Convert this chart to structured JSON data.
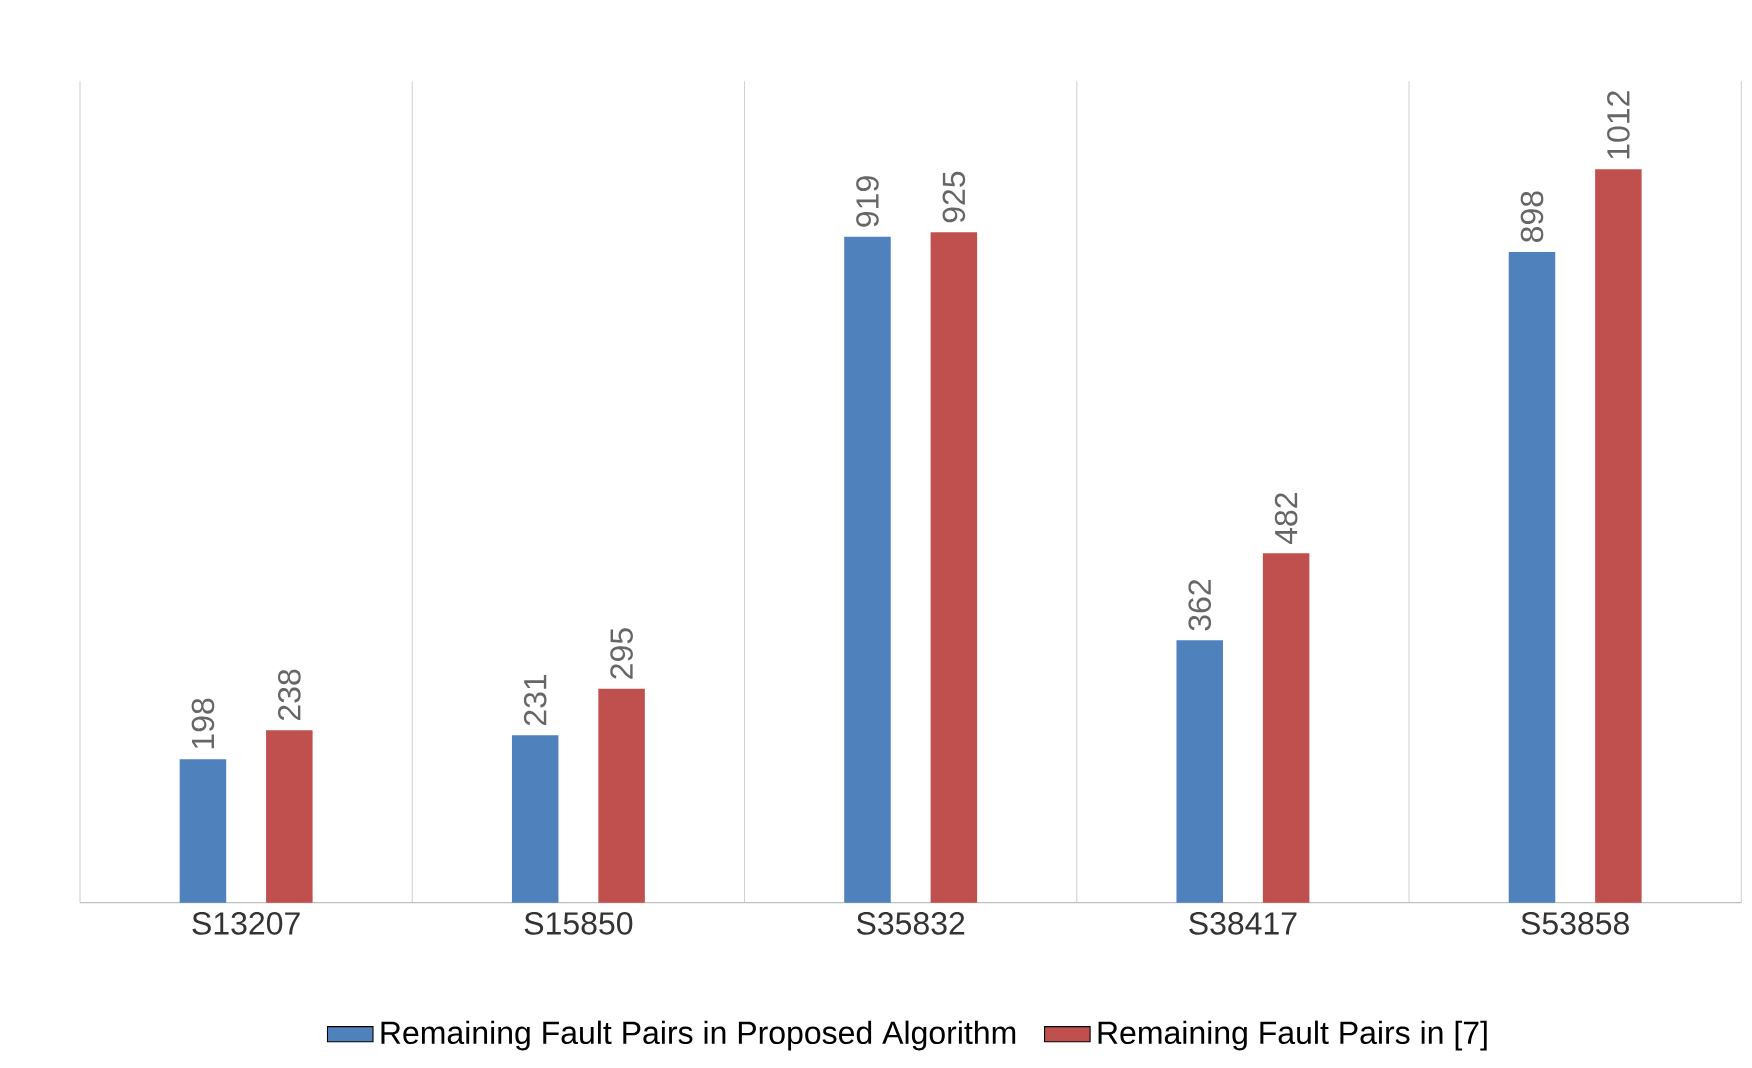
{
  "chart_data": {
    "type": "bar",
    "categories": [
      "S13207",
      "S15850",
      "S35832",
      "S38417",
      "S53858"
    ],
    "series": [
      {
        "name": "Remaining Fault Pairs in Proposed Algorithm",
        "color": "#4f81bd",
        "values": [
          198,
          231,
          919,
          362,
          898
        ]
      },
      {
        "name": "Remaining Fault Pairs in [7]",
        "color": "#c0504d",
        "values": [
          238,
          295,
          925,
          482,
          1012
        ]
      }
    ],
    "data_labels": true,
    "grid": "x",
    "legend": "bottom"
  }
}
